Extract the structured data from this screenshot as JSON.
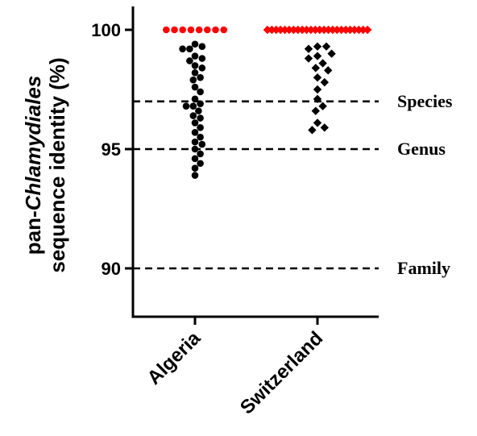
{
  "chart_data": {
    "type": "scatter",
    "ylabel_prefix": "pan-",
    "ylabel_italic": "Chlamydiales",
    "ylabel_line2": "sequence identity (%)",
    "ylim": [
      88,
      101
    ],
    "yticks": [
      90,
      95,
      100
    ],
    "ytick_labels": [
      "90",
      "95",
      "100"
    ],
    "categories": [
      "Algeria",
      "Switzerland"
    ],
    "reference_lines": [
      {
        "label": "Species",
        "y": 97
      },
      {
        "label": "Genus",
        "y": 95
      },
      {
        "label": "Family",
        "y": 90
      }
    ],
    "colors": {
      "identical": "#ff0000",
      "other": "#000000"
    },
    "series": [
      {
        "category": "Algeria",
        "marker": "circle",
        "identical_count": 8,
        "values": [
          99.4,
          99.3,
          99.2,
          99.2,
          98.9,
          98.8,
          98.7,
          98.5,
          98.4,
          98.2,
          98.0,
          97.9,
          97.6,
          97.4,
          97.1,
          96.9,
          96.8,
          96.8,
          96.6,
          96.4,
          96.3,
          96.1,
          95.9,
          95.7,
          95.5,
          95.3,
          95.2,
          95.0,
          94.8,
          94.6,
          94.4,
          94.2,
          93.9
        ]
      },
      {
        "category": "Switzerland",
        "marker": "diamond",
        "identical_count": 24,
        "values": [
          99.3,
          99.3,
          99.2,
          99.0,
          98.9,
          98.8,
          98.6,
          98.4,
          98.3,
          98.0,
          97.8,
          97.5,
          97.1,
          96.8,
          96.6,
          96.1,
          95.9,
          95.8
        ]
      }
    ]
  }
}
